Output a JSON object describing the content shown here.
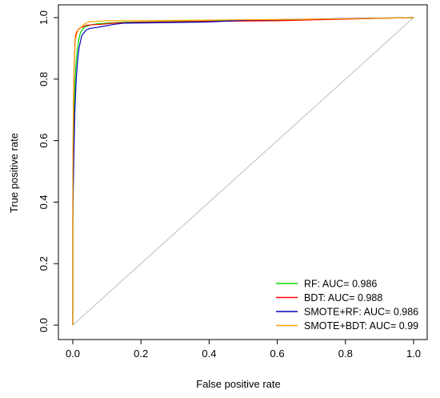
{
  "chart_data": {
    "type": "line",
    "xlabel": "False positive rate",
    "ylabel": "True positive rate",
    "xlim": [
      0,
      1
    ],
    "ylim": [
      0,
      1
    ],
    "x_ticks": [
      "0.0",
      "0.2",
      "0.4",
      "0.6",
      "0.8",
      "1.0"
    ],
    "y_ticks": [
      "0.0",
      "0.2",
      "0.4",
      "0.6",
      "0.8",
      "1.0"
    ],
    "grid": false,
    "legend_position": "bottom-right",
    "diagonal": {
      "points": [
        [
          0,
          0
        ],
        [
          1,
          1
        ]
      ],
      "color": "#bebebe"
    },
    "series": [
      {
        "name": "RF: AUC= 0.986",
        "color": "#00dd00",
        "points": [
          [
            0,
            0
          ],
          [
            0,
            0.3
          ],
          [
            0.002,
            0.55
          ],
          [
            0.004,
            0.7
          ],
          [
            0.007,
            0.8
          ],
          [
            0.01,
            0.86
          ],
          [
            0.014,
            0.9
          ],
          [
            0.018,
            0.93
          ],
          [
            0.022,
            0.95
          ],
          [
            0.028,
            0.96
          ],
          [
            0.035,
            0.97
          ],
          [
            0.05,
            0.975
          ],
          [
            0.07,
            0.98
          ],
          [
            0.1,
            0.982
          ],
          [
            0.15,
            0.985
          ],
          [
            0.25,
            0.987
          ],
          [
            0.4,
            0.989
          ],
          [
            0.6,
            0.992
          ],
          [
            0.8,
            0.996
          ],
          [
            1,
            1
          ]
        ]
      },
      {
        "name": "BDT: AUC= 0.988",
        "color": "#ff0000",
        "points": [
          [
            0,
            0
          ],
          [
            0,
            0.4
          ],
          [
            0.002,
            0.72
          ],
          [
            0.004,
            0.85
          ],
          [
            0.006,
            0.91
          ],
          [
            0.008,
            0.94
          ],
          [
            0.01,
            0.95
          ],
          [
            0.015,
            0.96
          ],
          [
            0.02,
            0.965
          ],
          [
            0.03,
            0.97
          ],
          [
            0.04,
            0.975
          ],
          [
            0.06,
            0.977
          ],
          [
            0.08,
            0.978
          ],
          [
            0.1,
            0.98
          ],
          [
            0.12,
            0.982
          ],
          [
            0.2,
            0.985
          ],
          [
            0.4,
            0.988
          ],
          [
            0.6,
            0.99
          ],
          [
            0.8,
            0.995
          ],
          [
            1,
            1
          ]
        ]
      },
      {
        "name": "SMOTE+RF: AUC= 0.986",
        "color": "#0000bb",
        "points": [
          [
            0,
            0
          ],
          [
            0,
            0.35
          ],
          [
            0.003,
            0.55
          ],
          [
            0.006,
            0.7
          ],
          [
            0.01,
            0.8
          ],
          [
            0.014,
            0.86
          ],
          [
            0.018,
            0.9
          ],
          [
            0.022,
            0.92
          ],
          [
            0.026,
            0.94
          ],
          [
            0.032,
            0.95
          ],
          [
            0.04,
            0.96
          ],
          [
            0.05,
            0.965
          ],
          [
            0.07,
            0.968
          ],
          [
            0.09,
            0.972
          ],
          [
            0.12,
            0.978
          ],
          [
            0.15,
            0.982
          ],
          [
            0.23,
            0.983
          ],
          [
            0.4,
            0.986
          ],
          [
            0.52,
            0.992
          ],
          [
            0.65,
            0.994
          ],
          [
            0.8,
            0.997
          ],
          [
            1,
            1
          ]
        ]
      },
      {
        "name": "SMOTE+BDT: AUC= 0.99",
        "color": "#ffa500",
        "points": [
          [
            0,
            0
          ],
          [
            0,
            0.5
          ],
          [
            0.002,
            0.75
          ],
          [
            0.004,
            0.85
          ],
          [
            0.006,
            0.9
          ],
          [
            0.008,
            0.93
          ],
          [
            0.012,
            0.95
          ],
          [
            0.016,
            0.96
          ],
          [
            0.022,
            0.965
          ],
          [
            0.03,
            0.975
          ],
          [
            0.04,
            0.983
          ],
          [
            0.05,
            0.987
          ],
          [
            0.07,
            0.988
          ],
          [
            0.1,
            0.99
          ],
          [
            0.15,
            0.99
          ],
          [
            0.3,
            0.991
          ],
          [
            0.5,
            0.993
          ],
          [
            0.7,
            0.995
          ],
          [
            0.85,
            0.997
          ],
          [
            1,
            1
          ]
        ]
      }
    ]
  }
}
